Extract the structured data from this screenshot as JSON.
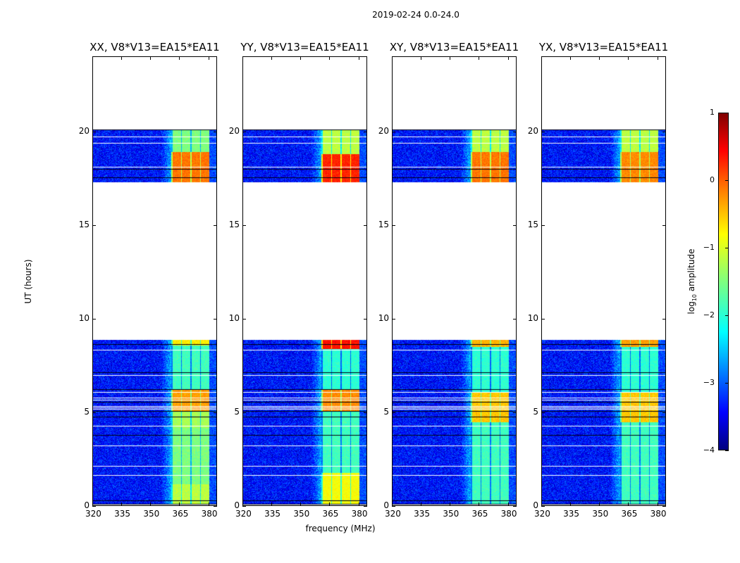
{
  "suptitle": "2019-02-24 0.0-24.0",
  "chart_data": {
    "type": "heatmap",
    "xlabel": "frequency (MHz)",
    "ylabel": "UT (hours)",
    "xlim": [
      320,
      384.5
    ],
    "ylim": [
      0,
      24
    ],
    "xticks": [
      "320",
      "335",
      "350",
      "365",
      "380"
    ],
    "xtick_values": [
      320,
      335,
      350,
      365,
      380
    ],
    "yticks": [
      "0",
      "5",
      "10",
      "15",
      "20"
    ],
    "ytick_values": [
      0,
      5,
      10,
      15,
      20
    ],
    "data_time_ranges": [
      [
        0.1,
        8.9
      ],
      [
        17.3,
        20.1
      ]
    ],
    "band_freq_range": [
      360.7,
      380.4
    ],
    "background_level": -3.3,
    "colorbar": {
      "label_prefix": "log",
      "label_sub": "10",
      "label_suffix": " amplitude",
      "colormap": "jet",
      "range": [
        -4,
        1
      ],
      "ticks": [
        "1",
        "0",
        "−1",
        "−2",
        "−3",
        "−4"
      ],
      "tick_values": [
        1,
        0,
        -1,
        -2,
        -3,
        -4
      ]
    },
    "panels": [
      {
        "title": "XX, V8*V13=EA15*EA11",
        "band_levels": [
          [
            0.1,
            1.2,
            -1.2
          ],
          [
            1.2,
            4.2,
            -1.5
          ],
          [
            4.2,
            5.1,
            -1.3
          ],
          [
            5.1,
            6.2,
            -0.4
          ],
          [
            6.2,
            8.6,
            -1.8
          ],
          [
            8.6,
            8.9,
            -0.8
          ],
          [
            17.3,
            18.9,
            -0.2
          ],
          [
            18.9,
            20.1,
            -1.5
          ]
        ]
      },
      {
        "title": "YY, V8*V13=EA15*EA11",
        "band_levels": [
          [
            0.1,
            1.8,
            -0.9
          ],
          [
            1.8,
            5.1,
            -1.8
          ],
          [
            5.1,
            6.2,
            -0.3
          ],
          [
            6.2,
            8.4,
            -1.9
          ],
          [
            8.4,
            8.9,
            0.3
          ],
          [
            17.3,
            18.8,
            0.2
          ],
          [
            18.8,
            20.1,
            -1.2
          ]
        ]
      },
      {
        "title": "XY, V8*V13=EA15*EA11",
        "band_levels": [
          [
            0.1,
            4.5,
            -1.8
          ],
          [
            4.5,
            6.1,
            -0.6
          ],
          [
            6.1,
            8.5,
            -1.9
          ],
          [
            8.5,
            8.9,
            -0.5
          ],
          [
            17.3,
            18.9,
            -0.2
          ],
          [
            18.9,
            20.1,
            -1.2
          ]
        ]
      },
      {
        "title": "YX, V8*V13=EA15*EA11",
        "band_levels": [
          [
            0.1,
            4.5,
            -1.8
          ],
          [
            4.5,
            6.1,
            -0.6
          ],
          [
            6.1,
            8.5,
            -1.9
          ],
          [
            8.5,
            8.9,
            -0.4
          ],
          [
            17.3,
            18.9,
            -0.3
          ],
          [
            18.9,
            20.1,
            -1.2
          ]
        ]
      }
    ]
  }
}
